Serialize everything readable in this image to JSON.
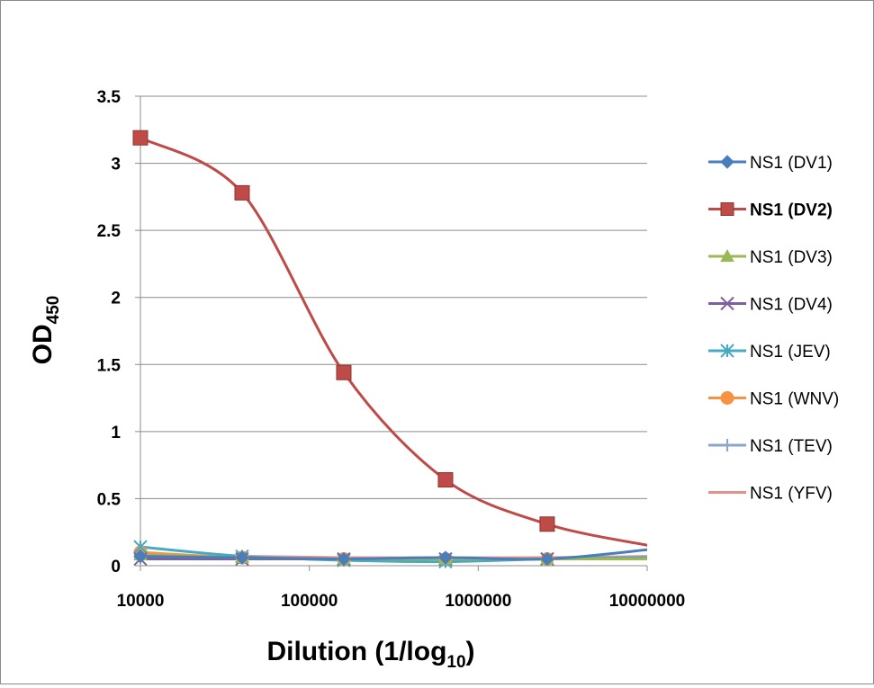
{
  "chart_data": {
    "type": "line",
    "x_scale": "log",
    "xlim": [
      10000,
      10000000
    ],
    "ylim": [
      0,
      3.5
    ],
    "x_tick_labels": [
      "10000",
      "100000",
      "1000000",
      "10000000"
    ],
    "y_tick_labels": [
      "0",
      "0.5",
      "1",
      "1.5",
      "2",
      "2.5",
      "3",
      "3.5"
    ],
    "x": [
      10000,
      40000,
      160000,
      640000,
      2560000,
      10240000
    ],
    "ylabel_main": "OD",
    "ylabel_sub": "450",
    "xlabel_main": "Dilution (1/log",
    "xlabel_sub": "10",
    "xlabel_end": ")",
    "grid": "horizontal",
    "legend_position": "right",
    "series": [
      {
        "name": "NS1 (DV1)",
        "color": "#4a7ebb",
        "marker": "diamond",
        "bold": false,
        "values": [
          0.07,
          0.06,
          0.05,
          0.06,
          0.05,
          0.12
        ]
      },
      {
        "name": "NS1 (DV2)",
        "color": "#be4b48",
        "marker": "square",
        "bold": true,
        "values": [
          3.19,
          2.78,
          1.44,
          0.64,
          0.31,
          0.15
        ]
      },
      {
        "name": "NS1 (DV3)",
        "color": "#98b954",
        "marker": "triangle",
        "bold": false,
        "values": [
          0.08,
          0.06,
          0.05,
          0.05,
          0.05,
          0.05
        ]
      },
      {
        "name": "NS1 (DV4)",
        "color": "#7d60a0",
        "marker": "x",
        "bold": false,
        "values": [
          0.05,
          0.05,
          0.05,
          0.05,
          0.05,
          0.05
        ]
      },
      {
        "name": "NS1 (JEV)",
        "color": "#46aac5",
        "marker": "asterisk",
        "bold": false,
        "values": [
          0.14,
          0.07,
          0.04,
          0.03,
          0.05,
          0.06
        ]
      },
      {
        "name": "NS1 (WNV)",
        "color": "#f69240",
        "marker": "circle",
        "bold": false,
        "values": [
          0.1,
          0.06,
          0.05,
          0.05,
          0.05,
          0.05
        ]
      },
      {
        "name": "NS1 (TEV)",
        "color": "#8ea5cb",
        "marker": "plus",
        "bold": false,
        "values": [
          0.06,
          0.06,
          0.05,
          0.05,
          0.05,
          0.05
        ]
      },
      {
        "name": "NS1 (YFV)",
        "color": "#e6908e",
        "marker": "none",
        "bold": false,
        "values": [
          0.07,
          0.07,
          0.06,
          0.06,
          0.06,
          0.07
        ]
      }
    ]
  }
}
